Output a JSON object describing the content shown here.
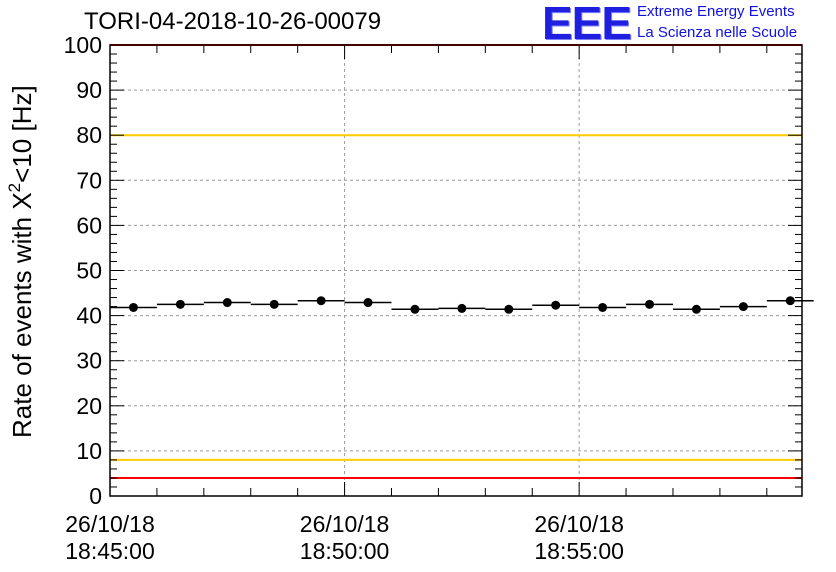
{
  "title": "TORI-04-2018-10-26-00079",
  "logo": {
    "mark": "EEE",
    "line1": "Extreme Energy Events",
    "line2": "La Scienza nelle Scuole",
    "color": "#1f1fe0"
  },
  "chart_data": {
    "type": "scatter",
    "title": "TORI-04-2018-10-26-00079",
    "ylabel_main": "Rate of events with X",
    "ylabel_sup": "2",
    "ylabel_tail": "<10 [Hz]",
    "xlabel": "",
    "ylim": [
      0,
      100
    ],
    "xlim_minutes": [
      0,
      14.75
    ],
    "yticks": [
      0,
      10,
      20,
      30,
      40,
      50,
      60,
      70,
      80,
      90,
      100
    ],
    "ytick_labels": [
      "0",
      "10",
      "20",
      "30",
      "40",
      "50",
      "60",
      "70",
      "80",
      "90",
      "100"
    ],
    "xticks_minutes": [
      0,
      5,
      10
    ],
    "xtick_labels": [
      [
        "26/10/18",
        "18:45:00"
      ],
      [
        "26/10/18",
        "18:50:00"
      ],
      [
        "26/10/18",
        "18:55:00"
      ]
    ],
    "grid": true,
    "bin_width_minutes": 1,
    "x_minutes": [
      0,
      1,
      2,
      3,
      4,
      5,
      6,
      7,
      8,
      9,
      10,
      11,
      12,
      13,
      14
    ],
    "values": [
      41.8,
      42.5,
      42.9,
      42.5,
      43.3,
      42.9,
      41.4,
      41.6,
      41.4,
      42.3,
      41.8,
      42.5,
      41.4,
      42.0,
      43.3
    ],
    "reference_lines": [
      {
        "y": 100,
        "color": "#ff0000"
      },
      {
        "y": 80,
        "color": "#ffcc00"
      },
      {
        "y": 8,
        "color": "#ffcc00"
      },
      {
        "y": 4,
        "color": "#ff0000"
      }
    ],
    "marker_color": "#000000"
  }
}
